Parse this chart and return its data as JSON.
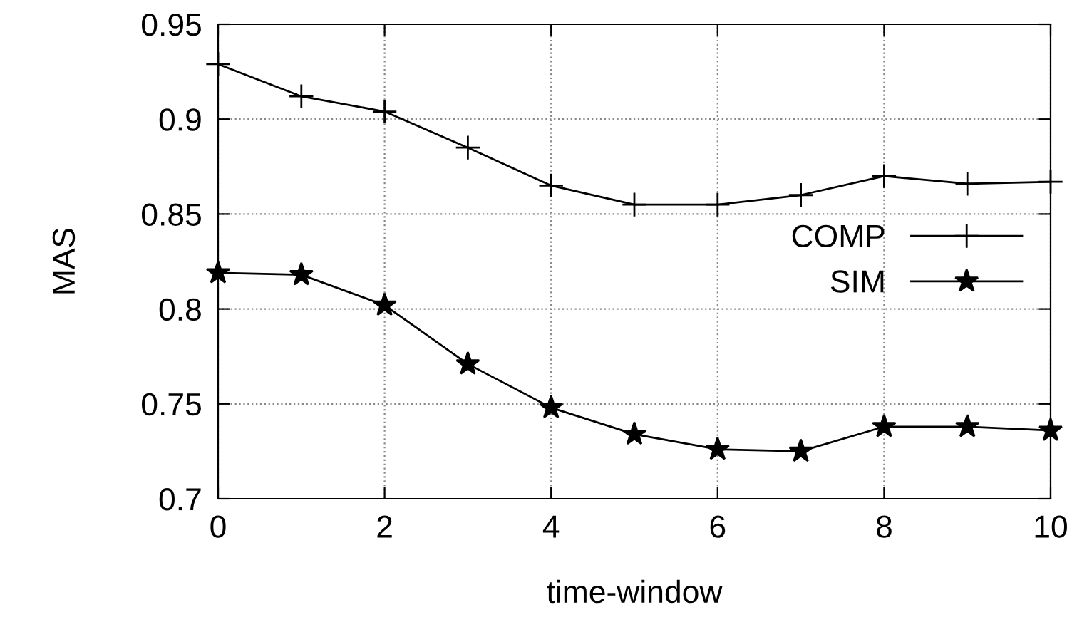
{
  "chart_data": {
    "type": "line",
    "xlabel": "time-window",
    "ylabel": "MAS",
    "x": [
      0,
      1,
      2,
      3,
      4,
      5,
      6,
      7,
      8,
      9,
      10
    ],
    "series": [
      {
        "name": "COMP",
        "color": "#000000",
        "marker": "cross",
        "values": [
          0.929,
          0.912,
          0.904,
          0.885,
          0.865,
          0.855,
          0.855,
          0.86,
          0.87,
          0.866,
          0.867
        ]
      },
      {
        "name": "SIM",
        "color": "#000000",
        "marker": "star",
        "values": [
          0.819,
          0.818,
          0.802,
          0.771,
          0.748,
          0.734,
          0.726,
          0.725,
          0.738,
          0.738,
          0.736
        ]
      }
    ],
    "xlim": [
      0,
      10
    ],
    "xticks": [
      0,
      2,
      4,
      6,
      8,
      10
    ],
    "ylim": [
      0.7,
      0.95
    ],
    "yticks": [
      0.7,
      0.75,
      0.8,
      0.85,
      0.9,
      0.95
    ],
    "grid": true,
    "legend": "right",
    "line_style": "solid"
  }
}
